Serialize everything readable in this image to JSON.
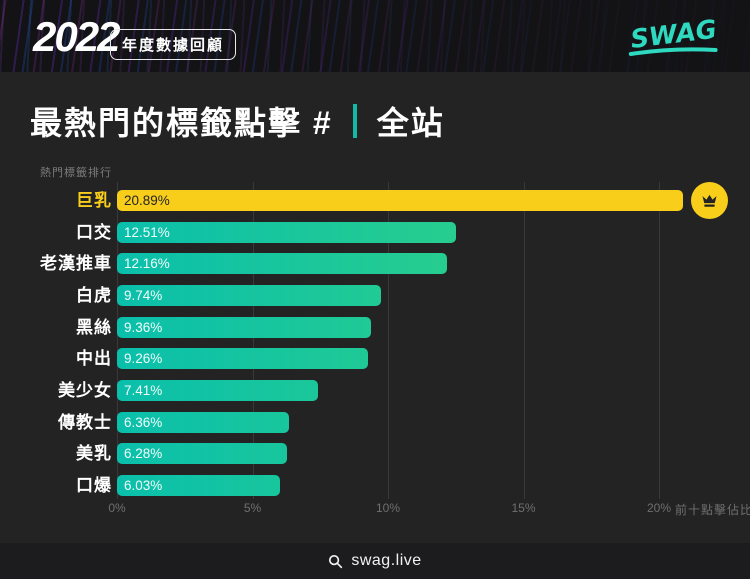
{
  "header": {
    "year": "2022",
    "badge": "年度數據回顧",
    "logo_text": "SWAG",
    "logo_color": "#2fd9c0"
  },
  "title": {
    "main": "最熱門的標籤點擊 #",
    "scope": "全站"
  },
  "chart_data": {
    "type": "bar",
    "orientation": "horizontal",
    "note": "熱門標籤排行",
    "axis_caption": "前十點擊佔比",
    "categories": [
      "巨乳",
      "口交",
      "老漢推車",
      "白虎",
      "黑絲",
      "中出",
      "美少女",
      "傳教士",
      "美乳",
      "口爆"
    ],
    "values": [
      20.89,
      12.51,
      12.16,
      9.74,
      9.36,
      9.26,
      7.41,
      6.36,
      6.28,
      6.03
    ],
    "value_labels": [
      "20.89%",
      "12.51%",
      "12.16%",
      "9.74%",
      "9.36%",
      "9.26%",
      "7.41%",
      "6.36%",
      "6.28%",
      "6.03%"
    ],
    "x_ticks": [
      {
        "label": "0%",
        "percent": 0
      },
      {
        "label": "5%",
        "percent": 5
      },
      {
        "label": "10%",
        "percent": 10
      },
      {
        "label": "15%",
        "percent": 15
      },
      {
        "label": "20%",
        "percent": 20
      }
    ],
    "xlim": [
      0,
      22
    ],
    "grid": true,
    "highlight_index": 0,
    "colors": {
      "highlight": "#f8ce1b",
      "bar_gradient_start": "#0abfab",
      "bar_gradient_end": "#3bd77c",
      "label": "#ffffff",
      "axis_text": "#6f6f6f"
    }
  },
  "footer": {
    "domain": "swag.live"
  }
}
